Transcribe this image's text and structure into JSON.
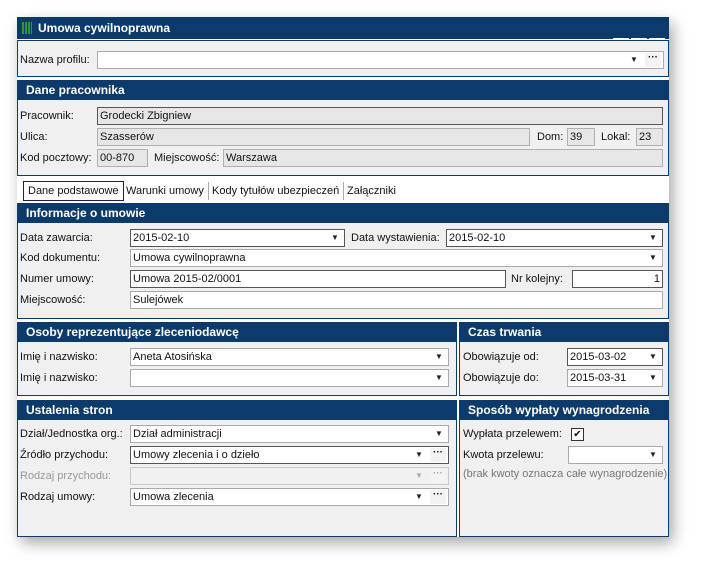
{
  "window": {
    "title": "Umowa cywilnoprawna",
    "app_icon": "grid-icon",
    "buttons": [
      "lock-icon",
      "close-icon",
      "help-icon"
    ],
    "help_label": "?"
  },
  "profile": {
    "label": "Nazwa profilu:",
    "value": ""
  },
  "employee": {
    "header": "Dane pracownika",
    "pracownik_label": "Pracownik:",
    "pracownik": "Grodecki Zbigniew",
    "ulica_label": "Ulica:",
    "ulica": "Szasserów",
    "dom_label": "Dom:",
    "dom": "39",
    "lokal_label": "Lokal:",
    "lokal": "23",
    "kod_label": "Kod pocztowy:",
    "kod": "00-870",
    "miejscowosc_label": "Miejscowość:",
    "miejscowosc": "Warszawa"
  },
  "tabs": [
    {
      "label": "Dane podstawowe",
      "active": true
    },
    {
      "label": "Warunki umowy"
    },
    {
      "label": "Kody tytułów ubezpieczeń"
    },
    {
      "label": "Załączniki"
    }
  ],
  "info": {
    "header": "Informacje o umowie",
    "data_zawarcia_label": "Data zawarcia:",
    "data_zawarcia": "2015-02-10",
    "data_wystawienia_label": "Data wystawienia:",
    "data_wystawienia": "2015-02-10",
    "kod_dok_label": "Kod dokumentu:",
    "kod_dok": "Umowa cywilnoprawna",
    "numer_label": "Numer umowy:",
    "numer": "Umowa 2015-02/0001",
    "nr_kolejny_label": "Nr kolejny:",
    "nr_kolejny": "1",
    "miejscowosc_label": "Miejscowość:",
    "miejscowosc": "Sulejówek"
  },
  "osoby": {
    "header": "Osoby reprezentujące zleceniodawcę",
    "label1": "Imię i nazwisko:",
    "value1": "Aneta Atosińska",
    "label2": "Imię i nazwisko:",
    "value2": ""
  },
  "czas": {
    "header": "Czas trwania",
    "od_label": "Obowiązuje od:",
    "od": "2015-03-02",
    "do_label": "Obowiązuje do:",
    "do": "2015-03-31"
  },
  "ustalenia": {
    "header": "Ustalenia stron",
    "dzial_label": "Dział/Jednostka org.:",
    "dzial": "Dział administracji",
    "zrodlo_label": "Źródło przychodu:",
    "zrodlo": "Umowy zlecenia i o dzieło",
    "rodzaj_przych_label": "Rodzaj przychodu:",
    "rodzaj_przych": "",
    "rodzaj_umowy_label": "Rodzaj umowy:",
    "rodzaj_umowy": "Umowa zlecenia"
  },
  "wyplata": {
    "header": "Sposób wypłaty wynagrodzenia",
    "przelew_label": "Wypłata przelewem:",
    "przelew_checked": true,
    "kwota_label": "Kwota przelewu:",
    "kwota": "",
    "note": "(brak kwoty oznacza całe wynagrodzenie)"
  },
  "glyphs": {
    "dropdown": "▼",
    "ellipsis": "···",
    "check": "✔",
    "lock": "🔒",
    "close": "☒"
  },
  "colors": {
    "header": "#0b3a6b",
    "panel": "#f0f0f0"
  }
}
